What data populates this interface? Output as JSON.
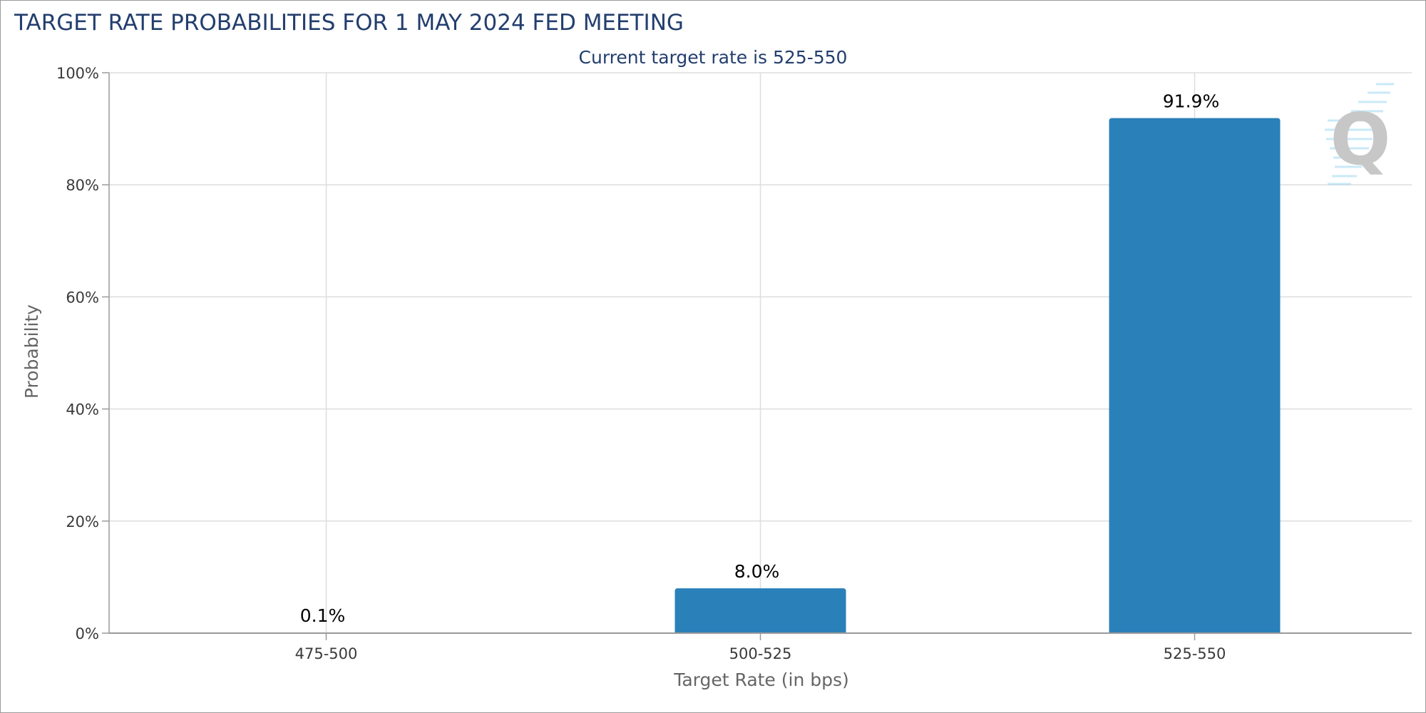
{
  "chart_data": {
    "type": "bar",
    "title": "TARGET RATE PROBABILITIES FOR 1 MAY 2024 FED MEETING",
    "subtitle": "Current target rate is 525-550",
    "xlabel": "Target Rate (in bps)",
    "ylabel": "Probability",
    "categories": [
      "475-500",
      "500-525",
      "525-550"
    ],
    "values": [
      0.1,
      8.0,
      91.9
    ],
    "data_labels": [
      "0.1%",
      "8.0%",
      "91.9%"
    ],
    "ylim": [
      0,
      100
    ],
    "y_ticks": [
      0,
      20,
      40,
      60,
      80,
      100
    ],
    "y_tick_labels": [
      "0%",
      "20%",
      "40%",
      "60%",
      "80%",
      "100%"
    ],
    "grid": true,
    "bar_color": "#2a80b9",
    "title_color": "#233e6e",
    "watermark": "Q"
  }
}
